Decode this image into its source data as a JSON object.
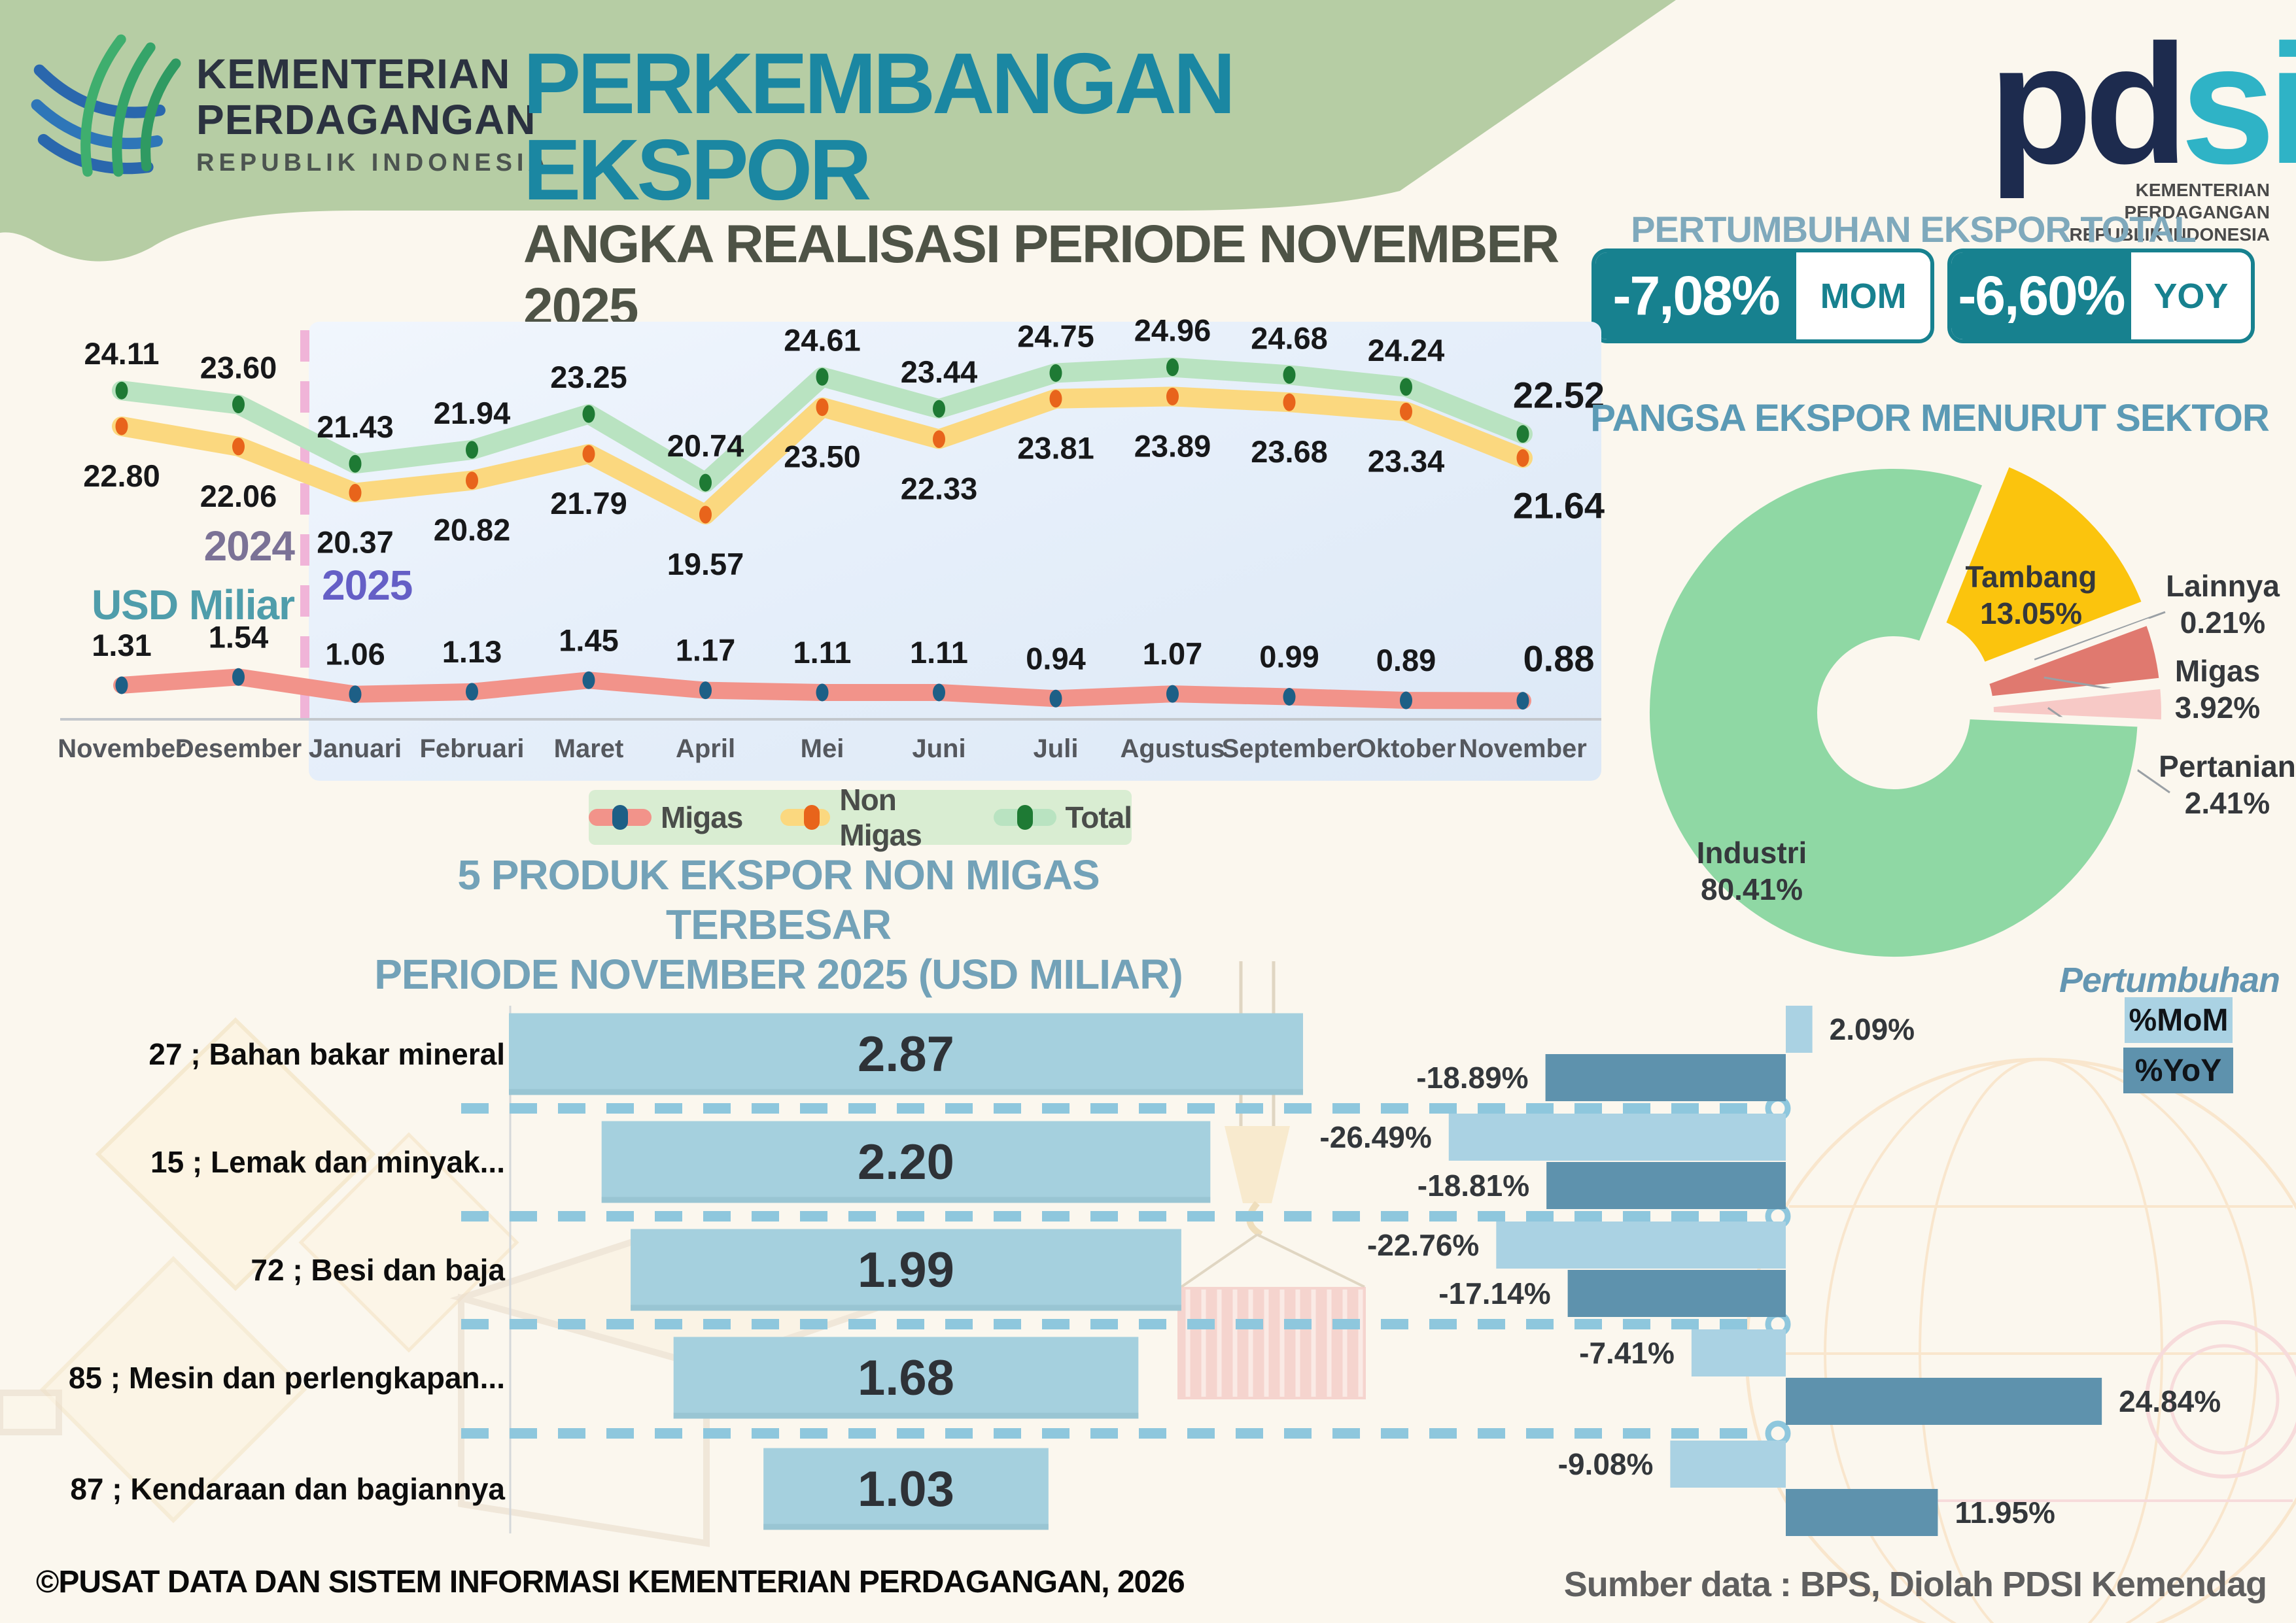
{
  "header": {
    "ministry": {
      "line1": "KEMENTERIAN",
      "line2": "PERDAGANGAN",
      "line3": "REPUBLIK INDONESIA"
    },
    "title": "PERKEMBANGAN EKSPOR",
    "subtitle": "ANGKA REALISASI PERIODE NOVEMBER 2025",
    "pdsi": {
      "pd": "pd",
      "si": "si",
      "caption_line1": "KEMENTERIAN PERDAGANGAN",
      "caption_line2": "REPUBLIK INDONESIA"
    },
    "band_color": "#b6cda4",
    "title_color": "#1b87a2"
  },
  "growth_total": {
    "heading": "PERTUMBUHAN EKSPOR TOTAL",
    "accent_color": "#17818f",
    "items": [
      {
        "value": "-7,08%",
        "label": "MOM"
      },
      {
        "value": "-6,60%",
        "label": "YOY"
      }
    ]
  },
  "chart_data": [
    {
      "type": "line",
      "unit_label": "USD Miliar",
      "year_left": "2024",
      "year_right": "2025",
      "divider_color": "#f0b4d8",
      "categories": [
        "November",
        "Desember",
        "Januari",
        "Februari",
        "Maret",
        "April",
        "Mei",
        "Juni",
        "Juli",
        "Agustus",
        "September",
        "Oktober",
        "November"
      ],
      "series": [
        {
          "name": "Migas",
          "band_color": "#f2938a",
          "dot_color": "#1d5f86",
          "values": [
            1.31,
            1.54,
            1.06,
            1.13,
            1.45,
            1.17,
            1.11,
            1.11,
            0.94,
            1.07,
            0.99,
            0.89,
            0.88
          ]
        },
        {
          "name": "Non Migas",
          "band_color": "#fbd87f",
          "dot_color": "#e8641b",
          "values": [
            22.8,
            22.06,
            20.37,
            20.82,
            21.79,
            19.57,
            23.5,
            22.33,
            23.81,
            23.89,
            23.68,
            23.34,
            21.64
          ]
        },
        {
          "name": "Total",
          "band_color": "#b9e3c1",
          "dot_color": "#1e7a34",
          "values": [
            24.11,
            23.6,
            21.43,
            21.94,
            23.25,
            20.74,
            24.61,
            23.44,
            24.75,
            24.96,
            24.68,
            24.24,
            22.52
          ]
        }
      ],
      "legend_bg": "#d9edd2"
    },
    {
      "type": "pie",
      "title": "PANGSA EKSPOR MENURUT SEKTOR",
      "slices": [
        {
          "label": "Tambang",
          "value": 13.05,
          "color": "#fbc40d",
          "explode": 45,
          "label_x": 3105,
          "label_y": 898,
          "leader": false
        },
        {
          "label": "Lainnya",
          "value": 0.21,
          "color": "#f3ece6",
          "explode": 30,
          "label_x": 3398,
          "label_y": 912,
          "leader": true
        },
        {
          "label": "Migas",
          "value": 3.92,
          "color": "#e0796f",
          "explode": 36,
          "label_x": 3390,
          "label_y": 1042,
          "leader": true
        },
        {
          "label": "Pertanian",
          "value": 2.41,
          "color": "#f7c9c6",
          "explode": 36,
          "label_x": 3405,
          "label_y": 1188,
          "leader": true
        },
        {
          "label": "Industri",
          "value": 80.41,
          "color": "#8fd8a4",
          "explode": 0,
          "label_x": 2678,
          "label_y": 1320,
          "leader": false
        }
      ]
    },
    {
      "type": "bar",
      "title_line1": "5 PRODUK EKSPOR NON MIGAS TERBESAR",
      "title_line2": "PERIODE NOVEMBER 2025 (USD MILIAR)",
      "bar_color": "#a5d0de",
      "rows": [
        {
          "label": "27 ; Bahan bakar mineral",
          "value": 2.87,
          "mom": 2.09,
          "yoy": -18.89
        },
        {
          "label": "15 ; Lemak dan minyak...",
          "value": 2.2,
          "mom": -26.49,
          "yoy": -18.81
        },
        {
          "label": "72 ; Besi dan baja",
          "value": 1.99,
          "mom": -22.76,
          "yoy": -17.14
        },
        {
          "label": "85 ; Mesin dan perlengkapan...",
          "value": 1.68,
          "mom": -7.41,
          "yoy": 24.84
        },
        {
          "label": "87 ; Kendaraan dan bagiannya",
          "value": 1.03,
          "mom": -9.08,
          "yoy": 11.95
        }
      ],
      "growth_legend": {
        "title": "Pertumbuhan",
        "mom": "%MoM",
        "yoy": "%YoY",
        "mom_color": "#aad2e3",
        "yoy_color": "#5e92ad"
      }
    }
  ],
  "footer": {
    "left": "©PUSAT DATA DAN SISTEM INFORMASI KEMENTERIAN PERDAGANGAN, 2026",
    "right": "Sumber data : BPS, Diolah PDSI Kemendag"
  }
}
